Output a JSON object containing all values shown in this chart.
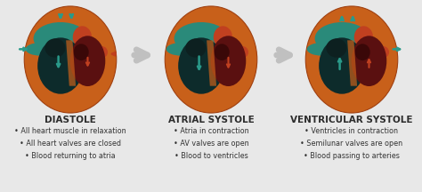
{
  "background_color": "#e8e8e8",
  "sections": [
    {
      "label": "DIASTOLE",
      "bullets": [
        "All heart muscle in relaxation",
        "All heart valves are closed",
        "Blood returning to atria"
      ],
      "arrows_in": true,
      "arrows_out": false,
      "internal_arrows_down": true
    },
    {
      "label": "ATRIAL SYSTOLE",
      "bullets": [
        "Atria in contraction",
        "AV valves are open",
        "Blood to ventricles"
      ],
      "arrows_in": false,
      "arrows_out": false,
      "internal_arrows_down": true
    },
    {
      "label": "VENTRICULAR SYSTOLE",
      "bullets": [
        "Ventricles in contraction",
        "Semilunar valves are open",
        "Blood passing to arteries"
      ],
      "arrows_in": false,
      "arrows_out": true,
      "internal_arrows_down": false
    }
  ],
  "outer_color": "#c8601a",
  "lv_color": "#0d2b2b",
  "rv_color": "#5a1010",
  "atria_teal_color": "#2a8a7a",
  "atria_red_color": "#c04020",
  "vessel_teal_color": "#2a8a7a",
  "arrow_teal": "#2a9a8a",
  "arrow_red": "#c04020",
  "arrow_between_color": "#c0c0c0",
  "label_color": "#2c2c2c",
  "bullet_color": "#333333",
  "bullet_fontsize": 5.8,
  "label_fontsize": 7.5,
  "figsize": [
    4.74,
    2.16
  ],
  "dpi": 100
}
